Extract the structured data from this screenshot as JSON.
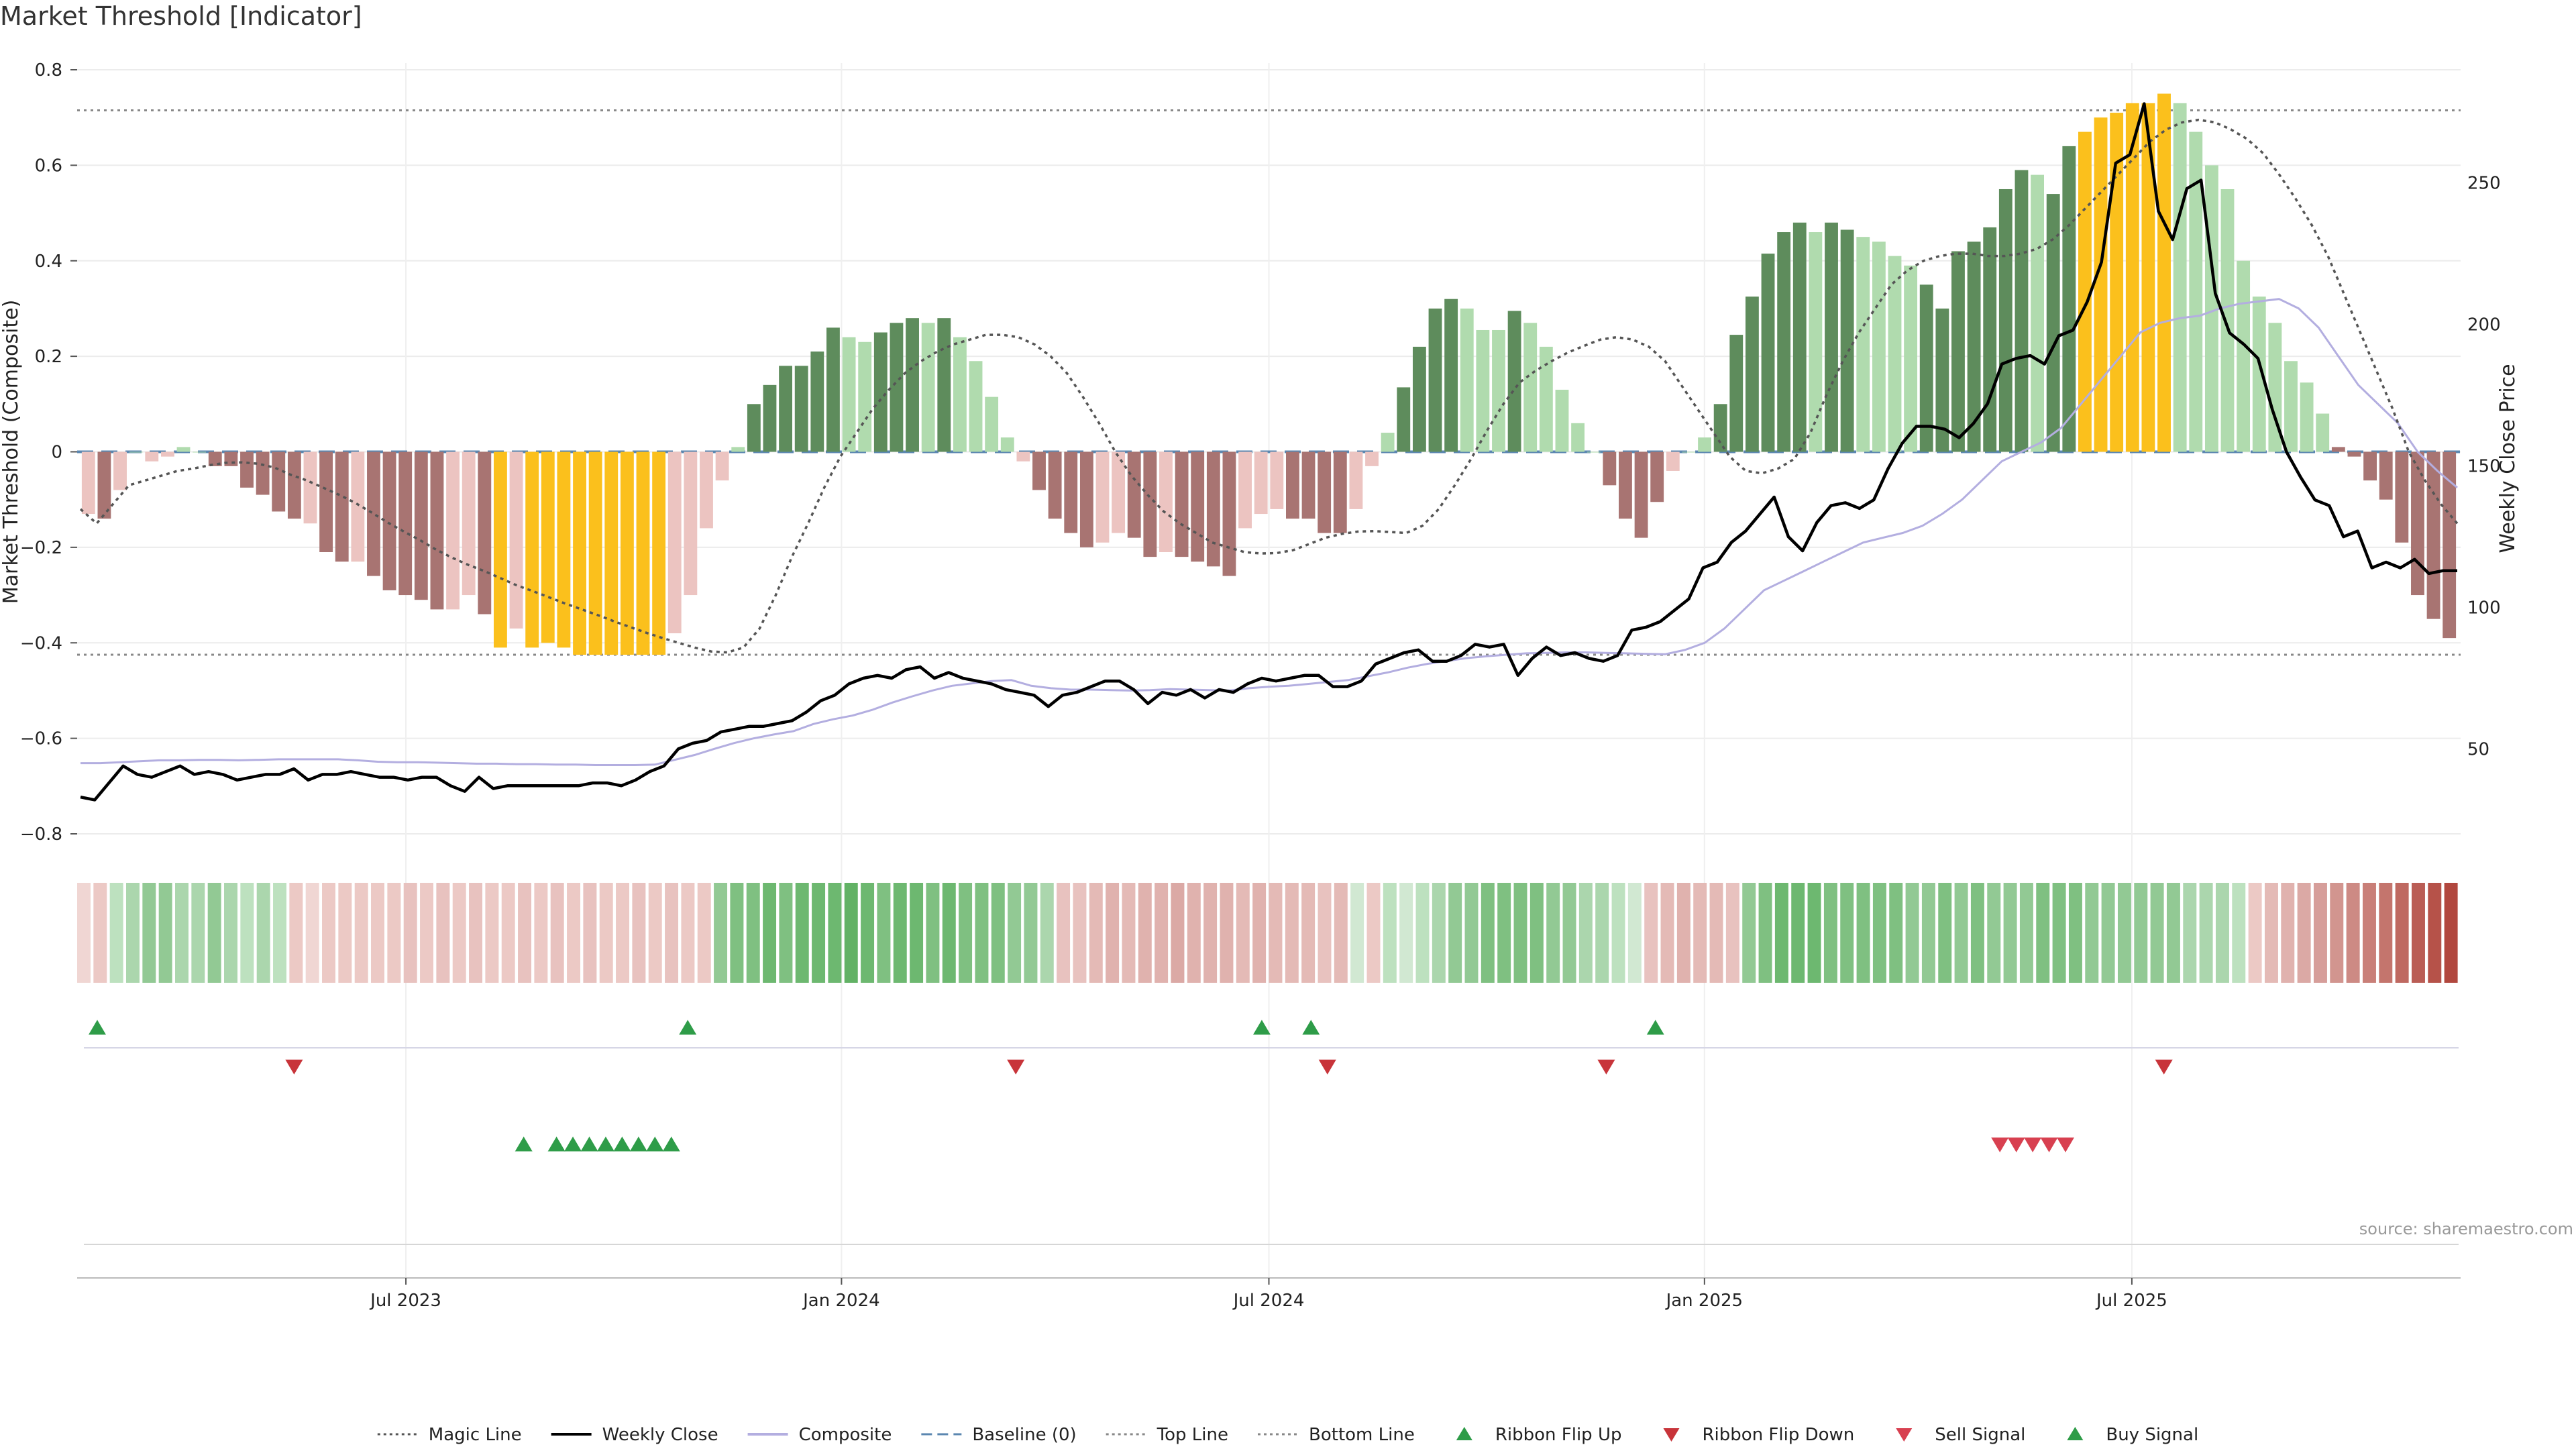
{
  "title": "Market Threshold [Indicator]",
  "source": "source: sharemaestro.com",
  "chart_data": {
    "type": "bar",
    "title": "Market Threshold [Indicator]",
    "ylabel_left": "Market Threshold (Composite)",
    "ylabel_right": "Weekly Close Price",
    "ylim_left": [
      -0.8,
      0.8
    ],
    "ylim_right": [
      20,
      290
    ],
    "yticks_left": [
      -0.8,
      -0.6,
      -0.4,
      -0.2,
      0,
      0.2,
      0.4,
      0.6,
      0.8
    ],
    "yticks_left_labels": [
      "−0.8",
      "−0.6",
      "−0.4",
      "−0.2",
      "0",
      "0.2",
      "0.4",
      "0.6",
      "0.8"
    ],
    "yticks_right": [
      50,
      100,
      150,
      200,
      250
    ],
    "yticks_right_labels": [
      "50",
      "100",
      "150",
      "200",
      "250"
    ],
    "xlim": [
      -3.5,
      141.5
    ],
    "xticks": [
      {
        "x": 16.5,
        "label": "Jul 2023"
      },
      {
        "x": 43,
        "label": "Jan 2024"
      },
      {
        "x": 69,
        "label": "Jul 2024"
      },
      {
        "x": 95.5,
        "label": "Jan 2025"
      },
      {
        "x": 121.5,
        "label": "Jul 2025"
      }
    ],
    "top_line": 0.715,
    "bottom_line": -0.425,
    "baseline": 0,
    "composite_bars": [
      -0.13,
      -0.14,
      -0.08,
      0.0,
      -0.02,
      -0.01,
      0.01,
      0.0,
      -0.03,
      -0.03,
      -0.075,
      -0.09,
      -0.125,
      -0.14,
      -0.15,
      -0.21,
      -0.23,
      -0.23,
      -0.26,
      -0.29,
      -0.3,
      -0.31,
      -0.33,
      -0.33,
      -0.3,
      -0.34,
      -0.41,
      -0.37,
      -0.41,
      -0.4,
      -0.41,
      -0.425,
      -0.425,
      -0.425,
      -0.425,
      -0.425,
      -0.425,
      -0.38,
      -0.3,
      -0.16,
      -0.06,
      0.01,
      0.1,
      0.14,
      0.18,
      0.18,
      0.21,
      0.26,
      0.24,
      0.23,
      0.25,
      0.27,
      0.28,
      0.27,
      0.28,
      0.24,
      0.19,
      0.115,
      0.03,
      -0.02,
      -0.08,
      -0.14,
      -0.17,
      -0.2,
      -0.19,
      -0.17,
      -0.18,
      -0.22,
      -0.21,
      -0.22,
      -0.23,
      -0.24,
      -0.26,
      -0.16,
      -0.13,
      -0.12,
      -0.14,
      -0.14,
      -0.17,
      -0.17,
      -0.12,
      -0.03,
      0.04,
      0.135,
      0.22,
      0.3,
      0.32,
      0.3,
      0.255,
      0.255,
      0.295,
      0.27,
      0.22,
      0.13,
      0.06,
      0.0,
      -0.07,
      -0.14,
      -0.18,
      -0.105,
      -0.04,
      0.0,
      0.03,
      0.1,
      0.245,
      0.325,
      0.415,
      0.46,
      0.48,
      0.46,
      0.48,
      0.465,
      0.45,
      0.44,
      0.41,
      0.39,
      0.35,
      0.3,
      0.42,
      0.44,
      0.47,
      0.55,
      0.59,
      0.58,
      0.54,
      0.64,
      0.67,
      0.7,
      0.71,
      0.73,
      0.73,
      0.75,
      0.73,
      0.67,
      0.6,
      0.55,
      0.4,
      0.325,
      0.27,
      0.19,
      0.145,
      0.08,
      0.01,
      -0.01,
      -0.06,
      -0.1,
      -0.19,
      -0.3,
      -0.35,
      -0.39
    ],
    "bar_styles": [
      "lr",
      "dr",
      "lr",
      "lg",
      "lr",
      "lr",
      "lg",
      "lg",
      "dr",
      "dr",
      "dr",
      "dr",
      "dr",
      "dr",
      "lr",
      "dr",
      "dr",
      "lr",
      "dr",
      "dr",
      "dr",
      "dr",
      "dr",
      "lr",
      "lr",
      "dr",
      "y",
      "lr",
      "y",
      "y",
      "y",
      "y",
      "y",
      "y",
      "y",
      "y",
      "y",
      "lr",
      "lr",
      "lr",
      "lr",
      "lg",
      "dg",
      "dg",
      "dg",
      "dg",
      "dg",
      "dg",
      "lg",
      "lg",
      "dg",
      "dg",
      "dg",
      "lg",
      "dg",
      "lg",
      "lg",
      "lg",
      "lg",
      "lr",
      "dr",
      "dr",
      "dr",
      "dr",
      "lr",
      "lr",
      "dr",
      "dr",
      "lr",
      "dr",
      "dr",
      "dr",
      "dr",
      "lr",
      "lr",
      "lr",
      "dr",
      "dr",
      "dr",
      "dr",
      "lr",
      "lr",
      "lg",
      "dg",
      "dg",
      "dg",
      "dg",
      "lg",
      "lg",
      "lg",
      "dg",
      "lg",
      "lg",
      "lg",
      "lg",
      "lg",
      "dr",
      "dr",
      "dr",
      "dr",
      "lr",
      "lg",
      "lg",
      "dg",
      "dg",
      "dg",
      "dg",
      "dg",
      "dg",
      "lg",
      "dg",
      "dg",
      "lg",
      "lg",
      "lg",
      "lg",
      "dg",
      "dg",
      "dg",
      "dg",
      "dg",
      "dg",
      "dg",
      "lg",
      "dg",
      "dg",
      "y",
      "y",
      "y",
      "y",
      "y",
      "y",
      "lg",
      "lg",
      "lg",
      "lg",
      "lg",
      "lg",
      "lg",
      "lg",
      "lg",
      "lg",
      "dr",
      "dr",
      "dr",
      "dr",
      "dr",
      "dr",
      "dr",
      "dr"
    ],
    "weekly_close": [
      33,
      32,
      38,
      44,
      41,
      40,
      42,
      44,
      41,
      42,
      41,
      39,
      40,
      41,
      41,
      43,
      39,
      41,
      41,
      42,
      41,
      40,
      40,
      39,
      40,
      40,
      37,
      35,
      40,
      36,
      37,
      37,
      37,
      37,
      37,
      37,
      38,
      38,
      37,
      39,
      42,
      44,
      50,
      52,
      53,
      56,
      57,
      58,
      58,
      59,
      60,
      63,
      67,
      69,
      73,
      75,
      76,
      75,
      78,
      79,
      75,
      77,
      75,
      74,
      73,
      71,
      70,
      69,
      65,
      69,
      70,
      72,
      74,
      74,
      71,
      66,
      70,
      69,
      71,
      68,
      71,
      70,
      73,
      75,
      74,
      75,
      76,
      76,
      72,
      72,
      74,
      80,
      82,
      84,
      85,
      81,
      81,
      83,
      87,
      86,
      87,
      76,
      82,
      86,
      83,
      84,
      82,
      81,
      83,
      92,
      93,
      95,
      99,
      103,
      114,
      116,
      123,
      127,
      133,
      139,
      125,
      120,
      130,
      136,
      137,
      135,
      138,
      149,
      158,
      164,
      164,
      163,
      160,
      165,
      172,
      186,
      188,
      189,
      186,
      196,
      198,
      208,
      222,
      257,
      260,
      278,
      240,
      230,
      248,
      251,
      211,
      197,
      193,
      188,
      170,
      155,
      146,
      138,
      136,
      125,
      127,
      114,
      116,
      114,
      117,
      112,
      113,
      113
    ],
    "composite_line": [
      -0.652,
      -0.652,
      -0.65,
      -0.648,
      -0.646,
      -0.646,
      -0.645,
      -0.645,
      -0.646,
      -0.645,
      -0.644,
      -0.644,
      -0.644,
      -0.644,
      -0.646,
      -0.649,
      -0.65,
      -0.65,
      -0.651,
      -0.652,
      -0.653,
      -0.653,
      -0.654,
      -0.654,
      -0.655,
      -0.655,
      -0.656,
      -0.656,
      -0.656,
      -0.655,
      -0.645,
      -0.635,
      -0.622,
      -0.61,
      -0.6,
      -0.592,
      -0.585,
      -0.57,
      -0.56,
      -0.552,
      -0.54,
      -0.525,
      -0.512,
      -0.5,
      -0.49,
      -0.485,
      -0.48,
      -0.478,
      -0.49,
      -0.495,
      -0.498,
      -0.498,
      -0.499,
      -0.5,
      -0.499,
      -0.497,
      -0.498,
      -0.499,
      -0.5,
      -0.495,
      -0.492,
      -0.49,
      -0.486,
      -0.482,
      -0.478,
      -0.47,
      -0.462,
      -0.452,
      -0.444,
      -0.438,
      -0.432,
      -0.428,
      -0.425,
      -0.422,
      -0.421,
      -0.42,
      -0.42,
      -0.421,
      -0.422,
      -0.423,
      -0.424,
      -0.415,
      -0.4,
      -0.37,
      -0.33,
      -0.29,
      -0.27,
      -0.25,
      -0.23,
      -0.21,
      -0.19,
      -0.18,
      -0.17,
      -0.155,
      -0.13,
      -0.1,
      -0.06,
      -0.02,
      0.0,
      0.02,
      0.05,
      0.1,
      0.15,
      0.2,
      0.25,
      0.27,
      0.28,
      0.285,
      0.3,
      0.31,
      0.315,
      0.32,
      0.3,
      0.26,
      0.2,
      0.14,
      0.1,
      0.06,
      0.0,
      -0.04,
      -0.075
    ],
    "magic_line": [
      -0.12,
      -0.15,
      -0.11,
      -0.07,
      -0.06,
      -0.05,
      -0.04,
      -0.035,
      -0.028,
      -0.023,
      -0.022,
      -0.025,
      -0.033,
      -0.048,
      -0.06,
      -0.075,
      -0.09,
      -0.107,
      -0.127,
      -0.148,
      -0.167,
      -0.185,
      -0.205,
      -0.222,
      -0.237,
      -0.25,
      -0.265,
      -0.28,
      -0.292,
      -0.305,
      -0.318,
      -0.33,
      -0.342,
      -0.355,
      -0.367,
      -0.379,
      -0.39,
      -0.4,
      -0.41,
      -0.418,
      -0.42,
      -0.41,
      -0.37,
      -0.3,
      -0.22,
      -0.15,
      -0.075,
      -0.01,
      0.04,
      0.09,
      0.13,
      0.165,
      0.19,
      0.21,
      0.225,
      0.235,
      0.245,
      0.245,
      0.24,
      0.225,
      0.2,
      0.165,
      0.115,
      0.06,
      0.0,
      -0.05,
      -0.09,
      -0.125,
      -0.15,
      -0.17,
      -0.19,
      -0.2,
      -0.21,
      -0.213,
      -0.212,
      -0.206,
      -0.193,
      -0.18,
      -0.172,
      -0.167,
      -0.166,
      -0.168,
      -0.17,
      -0.155,
      -0.12,
      -0.07,
      -0.015,
      0.045,
      0.1,
      0.145,
      0.17,
      0.19,
      0.208,
      0.222,
      0.235,
      0.24,
      0.235,
      0.22,
      0.19,
      0.14,
      0.09,
      0.04,
      -0.01,
      -0.04,
      -0.045,
      -0.035,
      -0.015,
      0.04,
      0.12,
      0.19,
      0.25,
      0.3,
      0.35,
      0.38,
      0.4,
      0.41,
      0.415,
      0.415,
      0.41,
      0.41,
      0.415,
      0.425,
      0.445,
      0.475,
      0.51,
      0.545,
      0.58,
      0.615,
      0.65,
      0.675,
      0.69,
      0.695,
      0.69,
      0.675,
      0.655,
      0.625,
      0.58,
      0.53,
      0.475,
      0.41,
      0.33,
      0.25,
      0.17,
      0.09,
      0.0,
      -0.06,
      -0.11,
      -0.15
    ],
    "ribbon_colors": [
      "#f0d6d3",
      "#ecc9c5",
      "#bde1bf",
      "#abd6ad",
      "#92c994",
      "#92c994",
      "#abd6ad",
      "#abd6ad",
      "#92c994",
      "#abd6ad",
      "#bde1bf",
      "#abd6ad",
      "#bde1bf",
      "#ecc9c5",
      "#f0d6d3",
      "#ecc9c5",
      "#ecc9c5",
      "#ecc9c5",
      "#ecc9c5",
      "#ecc9c5",
      "#e8c2bf",
      "#ecc9c5",
      "#e8c2bf",
      "#ecc9c5",
      "#e8c2bf",
      "#ecc9c5",
      "#ecc9c5",
      "#e8c2bf",
      "#ecc9c5",
      "#e8c2bf",
      "#ecc9c5",
      "#e8c2bf",
      "#ecc9c5",
      "#ecc9c5",
      "#e8c2bf",
      "#ecc9c5",
      "#e8c2bf",
      "#ecc9c5",
      "#ecc9c5",
      "#92c994",
      "#7fc081",
      "#7fc081",
      "#6db870",
      "#7fc081",
      "#6db870",
      "#6db870",
      "#6db870",
      "#62b265",
      "#6db870",
      "#7fc081",
      "#6db870",
      "#6db870",
      "#7fc081",
      "#6db870",
      "#7fc081",
      "#7fc081",
      "#7fc081",
      "#92c994",
      "#92c994",
      "#abd6ad",
      "#e8c2bf",
      "#e8c2bf",
      "#e4bab6",
      "#e0b2ae",
      "#e4bab6",
      "#e0b2ae",
      "#e0b2ae",
      "#dba9a5",
      "#e0b2ae",
      "#e0b2ae",
      "#e0b2ae",
      "#e4bab6",
      "#e0b2ae",
      "#e4bab6",
      "#e4bab6",
      "#e4bab6",
      "#e8c2bf",
      "#e4bab6",
      "#d1e8d2",
      "#ecc9c5",
      "#bde1bf",
      "#d1e8d2",
      "#bde1bf",
      "#abd6ad",
      "#92c994",
      "#92c994",
      "#7fc081",
      "#7fc081",
      "#7fc081",
      "#7fc081",
      "#92c994",
      "#92c994",
      "#abd6ad",
      "#abd6ad",
      "#bde1bf",
      "#d1e8d2",
      "#e8c2bf",
      "#e4bab6",
      "#e0b2ae",
      "#e4bab6",
      "#e4bab6",
      "#e8c2bf",
      "#92c994",
      "#7fc081",
      "#6db870",
      "#6db870",
      "#6db870",
      "#7fc081",
      "#7fc081",
      "#7fc081",
      "#7fc081",
      "#7fc081",
      "#92c994",
      "#92c994",
      "#7fc081",
      "#92c994",
      "#7fc081",
      "#92c994",
      "#92c994",
      "#92c994",
      "#7fc081",
      "#7fc081",
      "#7fc081",
      "#92c994",
      "#92c994",
      "#92c994",
      "#92c994",
      "#92c994",
      "#92c994",
      "#abd6ad",
      "#abd6ad",
      "#abd6ad",
      "#bde1bf",
      "#ecc9c5",
      "#e4bab6",
      "#e0b2ae",
      "#dba9a5",
      "#d69e9a",
      "#d2958f",
      "#cd8a84",
      "#c97f78",
      "#c4756d",
      "#bf6961",
      "#ba5d55",
      "#b65249",
      "#b1473e"
    ],
    "ribbon_flip_up_x": [
      0,
      36,
      71,
      74,
      95
    ],
    "ribbon_flip_down_x": [
      12,
      56,
      75,
      92,
      126
    ],
    "buy_signal_x": [
      26,
      28,
      29,
      30,
      31,
      32,
      33,
      34,
      35
    ],
    "sell_signal_x": [
      116,
      117,
      118,
      119,
      120
    ],
    "legend": [
      {
        "label": "Magic Line",
        "kind": "dotted-line",
        "color": "#555555"
      },
      {
        "label": "Weekly Close",
        "kind": "solid-line",
        "color": "#000000"
      },
      {
        "label": "Composite",
        "kind": "solid-line",
        "color": "#b3aee0"
      },
      {
        "label": "Baseline (0)",
        "kind": "dashed-line",
        "color": "#5b87b0"
      },
      {
        "label": "Top Line",
        "kind": "dotted-line",
        "color": "#888888"
      },
      {
        "label": "Bottom Line",
        "kind": "dotted-line",
        "color": "#888888"
      },
      {
        "label": "Ribbon Flip Up",
        "kind": "triangle-up",
        "color": "#2e9c48"
      },
      {
        "label": "Ribbon Flip Down",
        "kind": "triangle-down",
        "color": "#c8343a"
      },
      {
        "label": "Sell Signal",
        "kind": "triangle-down",
        "color": "#d84050"
      },
      {
        "label": "Buy Signal",
        "kind": "triangle-up",
        "color": "#2e9c48"
      }
    ]
  },
  "colors": {
    "dark_green": "#5e8c5c",
    "light_green": "#b0dbae",
    "dark_red": "#a87472",
    "light_red": "#ecc4c1",
    "yellow": "#fbc01c",
    "buy_green": "#2e9c48",
    "sell_red": "#c8343a"
  }
}
